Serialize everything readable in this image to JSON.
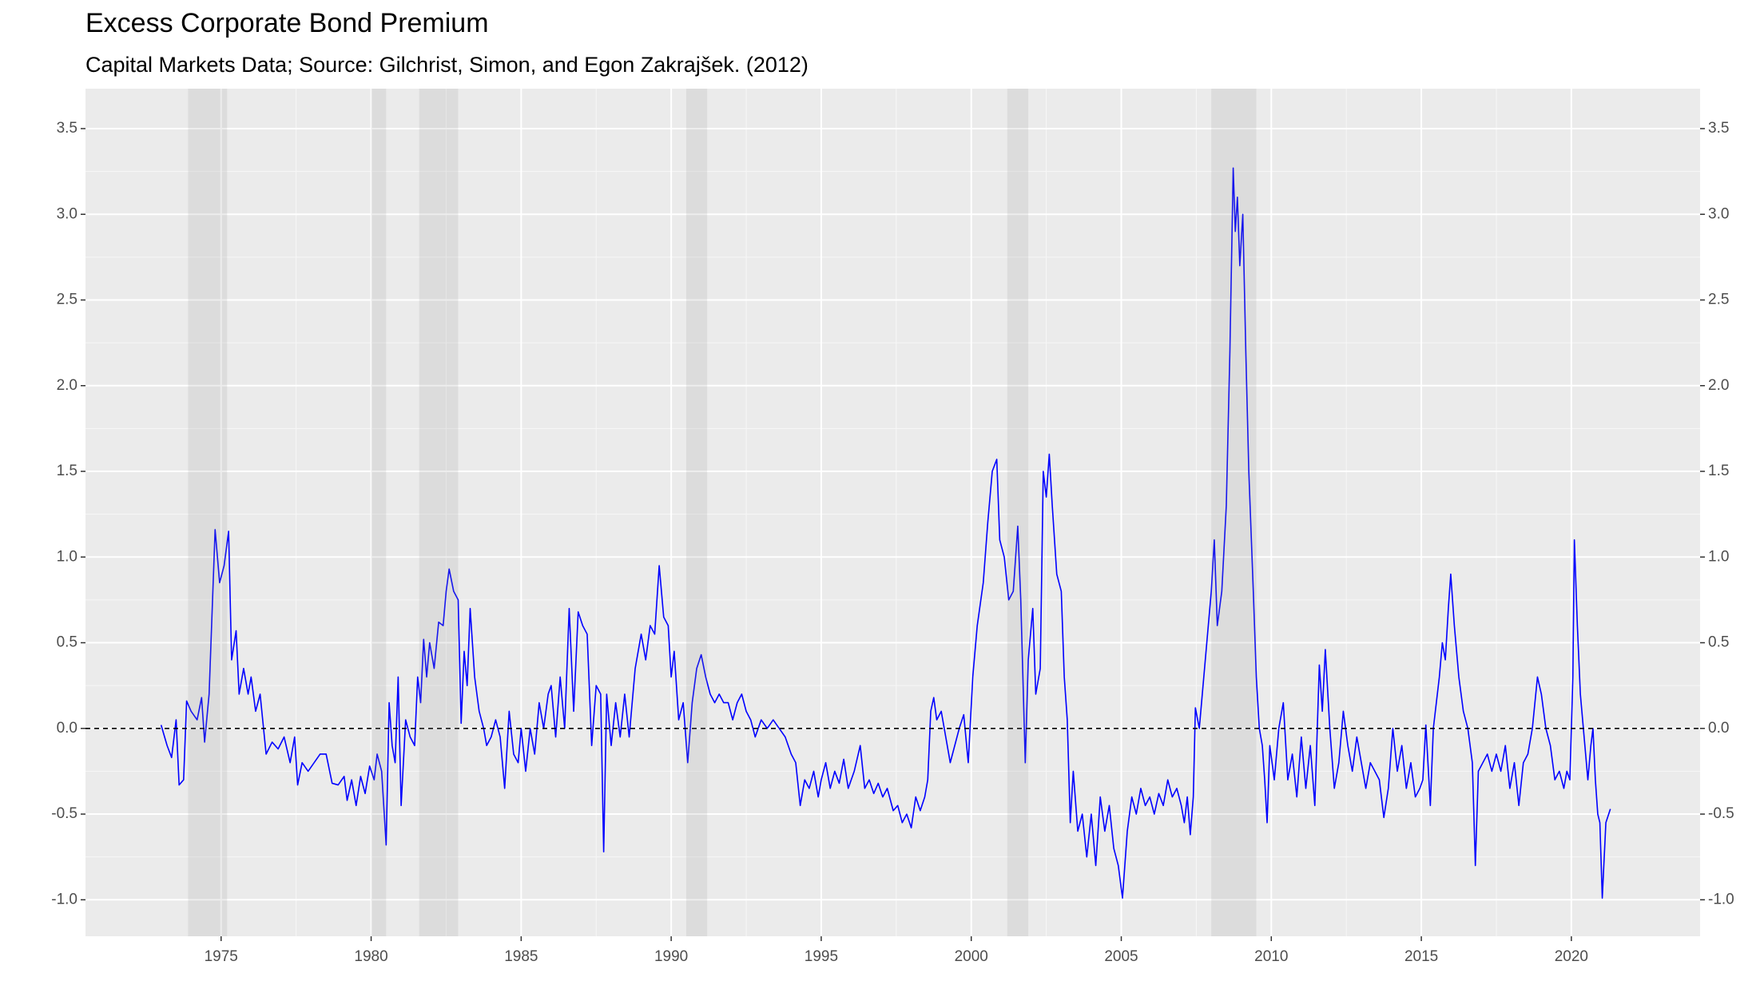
{
  "chart_data": {
    "type": "line",
    "title": "Excess Corporate Bond Premium",
    "subtitle": "Capital Markets Data; Source: Gilchrist, Simon, and Egon Zakrajšek. (2012)",
    "xlim": [
      1970.48,
      2024.29
    ],
    "xticks": [
      1975,
      1980,
      1985,
      1990,
      1995,
      2000,
      2005,
      2010,
      2015,
      2020
    ],
    "ylim": [
      -1.213,
      3.733
    ],
    "yticks": [
      3.5,
      {
        "value": 3,
        "label": "3.0"
      },
      2.5,
      {
        "value": 2,
        "label": "2.0"
      },
      1.5,
      {
        "value": 1,
        "label": "1.0"
      },
      0.5,
      {
        "value": 0,
        "label": "0.0"
      },
      -0.5,
      {
        "value": -1,
        "label": "-1.0"
      }
    ],
    "grid": true,
    "hline": 0,
    "recessions": [
      [
        1973.9,
        1975.2
      ],
      [
        1980.0,
        1980.5
      ],
      [
        1981.6,
        1982.9
      ],
      [
        1990.5,
        1991.2
      ],
      [
        2001.2,
        2001.9
      ],
      [
        2008.0,
        2009.5
      ]
    ],
    "series": [
      {
        "color": "#0000ff",
        "x": [
          1973.0,
          1973.2,
          1973.35,
          1973.5,
          1973.6,
          1973.75,
          1973.85,
          1974.0,
          1974.2,
          1974.35,
          1974.45,
          1974.6,
          1974.8,
          1974.95,
          1975.1,
          1975.25,
          1975.35,
          1975.5,
          1975.6,
          1975.75,
          1975.9,
          1976.0,
          1976.15,
          1976.3,
          1976.5,
          1976.7,
          1976.9,
          1977.1,
          1977.3,
          1977.45,
          1977.55,
          1977.7,
          1977.9,
          1978.1,
          1978.3,
          1978.5,
          1978.7,
          1978.9,
          1979.1,
          1979.2,
          1979.35,
          1979.5,
          1979.65,
          1979.8,
          1979.95,
          1980.1,
          1980.2,
          1980.35,
          1980.5,
          1980.6,
          1980.7,
          1980.8,
          1980.9,
          1981.0,
          1981.15,
          1981.3,
          1981.45,
          1981.55,
          1981.65,
          1981.75,
          1981.85,
          1981.95,
          1982.1,
          1982.25,
          1982.4,
          1982.5,
          1982.6,
          1982.75,
          1982.9,
          1983.0,
          1983.1,
          1983.2,
          1983.3,
          1983.45,
          1983.6,
          1983.75,
          1983.85,
          1984.0,
          1984.15,
          1984.3,
          1984.45,
          1984.6,
          1984.75,
          1984.9,
          1985.0,
          1985.15,
          1985.3,
          1985.45,
          1985.6,
          1985.75,
          1985.9,
          1986.0,
          1986.15,
          1986.3,
          1986.45,
          1986.6,
          1986.75,
          1986.9,
          1987.05,
          1987.2,
          1987.35,
          1987.5,
          1987.65,
          1987.75,
          1987.85,
          1988.0,
          1988.15,
          1988.3,
          1988.45,
          1988.6,
          1988.8,
          1989.0,
          1989.15,
          1989.3,
          1989.45,
          1989.6,
          1989.75,
          1989.9,
          1990.0,
          1990.1,
          1990.25,
          1990.4,
          1990.55,
          1990.7,
          1990.85,
          1991.0,
          1991.15,
          1991.3,
          1991.45,
          1991.6,
          1991.75,
          1991.9,
          1992.05,
          1992.2,
          1992.35,
          1992.5,
          1992.65,
          1992.8,
          1993.0,
          1993.2,
          1993.4,
          1993.6,
          1993.8,
          1994.0,
          1994.15,
          1994.3,
          1994.45,
          1994.6,
          1994.75,
          1994.9,
          1995.0,
          1995.15,
          1995.3,
          1995.45,
          1995.6,
          1995.75,
          1995.9,
          1996.1,
          1996.3,
          1996.45,
          1996.6,
          1996.75,
          1996.9,
          1997.05,
          1997.2,
          1997.4,
          1997.55,
          1997.7,
          1997.85,
          1998.0,
          1998.15,
          1998.3,
          1998.45,
          1998.55,
          1998.65,
          1998.75,
          1998.85,
          1999.0,
          1999.15,
          1999.3,
          1999.45,
          1999.6,
          1999.75,
          1999.9,
          2000.05,
          2000.2,
          2000.4,
          2000.55,
          2000.7,
          2000.85,
          2000.95,
          2001.1,
          2001.25,
          2001.4,
          2001.55,
          2001.65,
          2001.8,
          2001.9,
          2002.05,
          2002.15,
          2002.3,
          2002.4,
          2002.5,
          2002.6,
          2002.7,
          2002.85,
          2003.0,
          2003.1,
          2003.2,
          2003.3,
          2003.4,
          2003.55,
          2003.7,
          2003.85,
          2004.0,
          2004.15,
          2004.3,
          2004.45,
          2004.6,
          2004.75,
          2004.9,
          2005.04,
          2005.2,
          2005.35,
          2005.5,
          2005.65,
          2005.8,
          2005.95,
          2006.1,
          2006.25,
          2006.4,
          2006.55,
          2006.7,
          2006.85,
          2007.0,
          2007.1,
          2007.2,
          2007.3,
          2007.4,
          2007.47,
          2007.6,
          2007.75,
          2007.9,
          2008.0,
          2008.1,
          2008.2,
          2008.35,
          2008.5,
          2008.62,
          2008.73,
          2008.8,
          2008.87,
          2008.95,
          2009.05,
          2009.15,
          2009.25,
          2009.4,
          2009.5,
          2009.6,
          2009.7,
          2009.78,
          2009.86,
          2009.95,
          2010.1,
          2010.25,
          2010.4,
          2010.55,
          2010.7,
          2010.85,
          2011.0,
          2011.15,
          2011.3,
          2011.45,
          2011.6,
          2011.7,
          2011.8,
          2011.95,
          2012.1,
          2012.25,
          2012.4,
          2012.55,
          2012.7,
          2012.85,
          2013.0,
          2013.15,
          2013.3,
          2013.45,
          2013.6,
          2013.75,
          2013.9,
          2014.05,
          2014.2,
          2014.35,
          2014.5,
          2014.65,
          2014.8,
          2014.95,
          2015.05,
          2015.15,
          2015.3,
          2015.4,
          2015.5,
          2015.6,
          2015.7,
          2015.8,
          2015.9,
          2015.98,
          2016.1,
          2016.25,
          2016.4,
          2016.55,
          2016.7,
          2016.8,
          2016.9,
          2017.05,
          2017.2,
          2017.35,
          2017.5,
          2017.65,
          2017.8,
          2017.95,
          2018.1,
          2018.25,
          2018.4,
          2018.55,
          2018.7,
          2018.87,
          2019.0,
          2019.15,
          2019.3,
          2019.45,
          2019.6,
          2019.75,
          2019.85,
          2019.95,
          2020.05,
          2020.1,
          2020.2,
          2020.3,
          2020.45,
          2020.55,
          2020.65,
          2020.72,
          2020.8,
          2020.88,
          2020.95,
          2021.03,
          2021.15,
          2021.3
        ],
        "values": [
          0.02,
          -0.1,
          -0.17,
          0.05,
          -0.33,
          -0.3,
          0.16,
          0.1,
          0.05,
          0.18,
          -0.08,
          0.2,
          1.16,
          0.85,
          0.95,
          1.15,
          0.4,
          0.57,
          0.2,
          0.35,
          0.2,
          0.3,
          0.1,
          0.2,
          -0.15,
          -0.08,
          -0.12,
          -0.05,
          -0.2,
          -0.05,
          -0.33,
          -0.2,
          -0.25,
          -0.2,
          -0.15,
          -0.15,
          -0.32,
          -0.33,
          -0.28,
          -0.42,
          -0.3,
          -0.45,
          -0.28,
          -0.38,
          -0.22,
          -0.3,
          -0.15,
          -0.25,
          -0.68,
          0.15,
          -0.1,
          -0.2,
          0.3,
          -0.45,
          0.05,
          -0.05,
          -0.1,
          0.3,
          0.15,
          0.52,
          0.3,
          0.5,
          0.35,
          0.62,
          0.6,
          0.8,
          0.93,
          0.8,
          0.75,
          0.03,
          0.45,
          0.25,
          0.7,
          0.3,
          0.1,
          0.0,
          -0.1,
          -0.05,
          0.05,
          -0.05,
          -0.35,
          0.1,
          -0.15,
          -0.2,
          0.0,
          -0.25,
          0.0,
          -0.15,
          0.15,
          0.0,
          0.2,
          0.25,
          -0.05,
          0.3,
          0.0,
          0.7,
          0.1,
          0.68,
          0.6,
          0.55,
          -0.1,
          0.25,
          0.2,
          -0.72,
          0.2,
          -0.1,
          0.15,
          -0.05,
          0.2,
          -0.05,
          0.35,
          0.55,
          0.4,
          0.6,
          0.55,
          0.95,
          0.65,
          0.6,
          0.3,
          0.45,
          0.05,
          0.15,
          -0.2,
          0.15,
          0.35,
          0.43,
          0.3,
          0.2,
          0.15,
          0.2,
          0.15,
          0.15,
          0.05,
          0.15,
          0.2,
          0.1,
          0.05,
          -0.05,
          0.05,
          0.0,
          0.05,
          0.0,
          -0.05,
          -0.15,
          -0.2,
          -0.45,
          -0.3,
          -0.35,
          -0.25,
          -0.4,
          -0.3,
          -0.2,
          -0.35,
          -0.25,
          -0.32,
          -0.18,
          -0.35,
          -0.25,
          -0.1,
          -0.35,
          -0.3,
          -0.38,
          -0.32,
          -0.4,
          -0.35,
          -0.48,
          -0.45,
          -0.55,
          -0.5,
          -0.58,
          -0.4,
          -0.48,
          -0.4,
          -0.3,
          0.1,
          0.18,
          0.05,
          0.1,
          -0.05,
          -0.2,
          -0.1,
          0.0,
          0.08,
          -0.2,
          0.3,
          0.6,
          0.85,
          1.2,
          1.5,
          1.57,
          1.1,
          1.0,
          0.75,
          0.8,
          1.18,
          0.75,
          -0.2,
          0.4,
          0.7,
          0.2,
          0.35,
          1.5,
          1.35,
          1.6,
          1.3,
          0.9,
          0.8,
          0.3,
          0.05,
          -0.55,
          -0.25,
          -0.6,
          -0.5,
          -0.75,
          -0.5,
          -0.8,
          -0.4,
          -0.6,
          -0.45,
          -0.7,
          -0.8,
          -0.99,
          -0.6,
          -0.4,
          -0.5,
          -0.35,
          -0.45,
          -0.4,
          -0.5,
          -0.38,
          -0.45,
          -0.3,
          -0.4,
          -0.35,
          -0.45,
          -0.55,
          -0.4,
          -0.62,
          -0.4,
          0.12,
          0.0,
          0.3,
          0.6,
          0.8,
          1.1,
          0.6,
          0.8,
          1.3,
          2.2,
          3.27,
          2.9,
          3.1,
          2.7,
          3.0,
          2.2,
          1.5,
          0.8,
          0.3,
          0.0,
          -0.1,
          -0.3,
          -0.55,
          -0.1,
          -0.3,
          0.0,
          0.15,
          -0.3,
          -0.15,
          -0.4,
          -0.05,
          -0.35,
          -0.1,
          -0.45,
          0.37,
          0.1,
          0.46,
          0.0,
          -0.35,
          -0.2,
          0.1,
          -0.1,
          -0.25,
          -0.05,
          -0.2,
          -0.35,
          -0.2,
          -0.25,
          -0.3,
          -0.52,
          -0.35,
          0.0,
          -0.25,
          -0.1,
          -0.35,
          -0.2,
          -0.4,
          -0.35,
          -0.3,
          0.02,
          -0.45,
          0.0,
          0.15,
          0.3,
          0.5,
          0.4,
          0.7,
          0.9,
          0.6,
          0.3,
          0.1,
          0.0,
          -0.2,
          -0.8,
          -0.25,
          -0.2,
          -0.15,
          -0.25,
          -0.15,
          -0.25,
          -0.1,
          -0.35,
          -0.2,
          -0.45,
          -0.2,
          -0.15,
          0.0,
          0.3,
          0.2,
          0.0,
          -0.1,
          -0.3,
          -0.25,
          -0.35,
          -0.25,
          -0.3,
          0.3,
          1.1,
          0.6,
          0.2,
          -0.1,
          -0.3,
          -0.1,
          0.0,
          -0.3,
          -0.5,
          -0.55,
          -0.99,
          -0.55,
          -0.47
        ]
      }
    ]
  }
}
